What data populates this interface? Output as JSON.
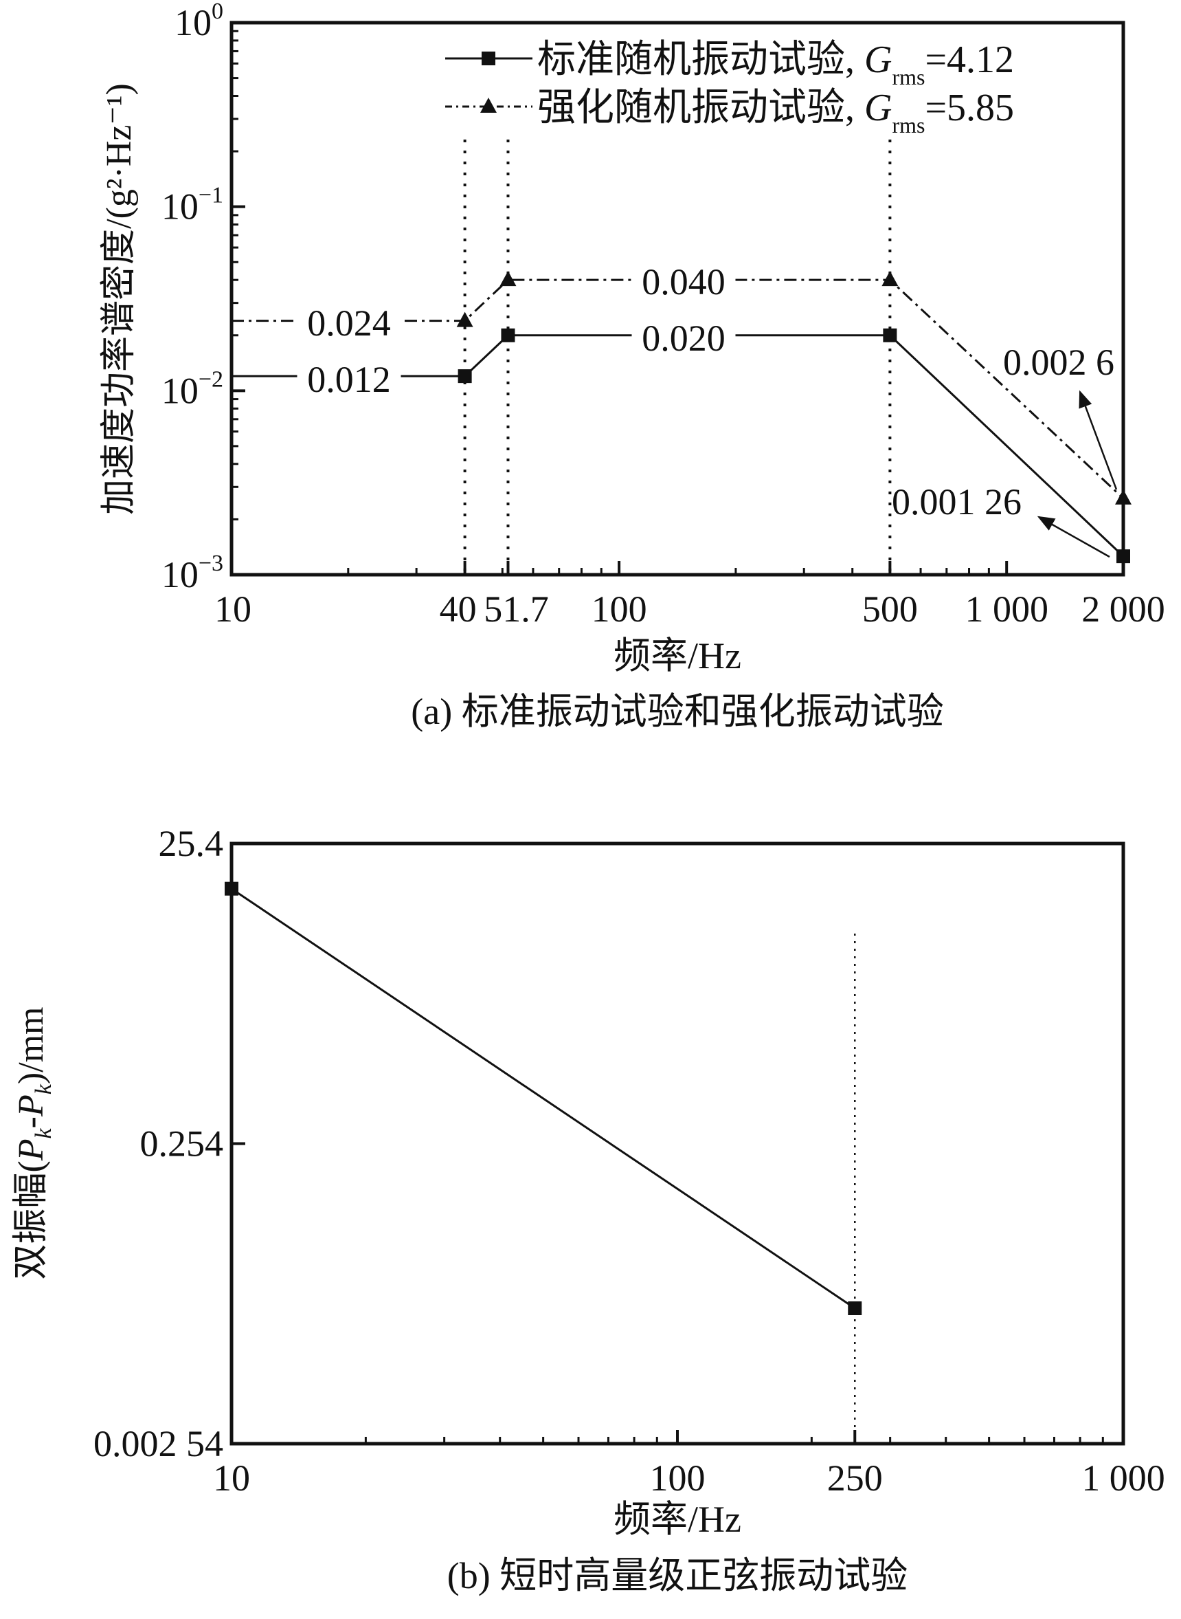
{
  "chart_data": [
    {
      "type": "line",
      "title": "",
      "caption": "(a) 标准振动试验和强化振动试验",
      "xlabel": "频率/Hz",
      "ylabel": "加速度功率谱密度/(g²·Hz⁻¹)",
      "xscale": "log",
      "yscale": "log",
      "xlim": [
        10,
        2000
      ],
      "ylim": [
        0.001,
        1
      ],
      "x_tick_values": [
        10,
        40,
        51.7,
        100,
        500,
        1000,
        2000
      ],
      "x_tick_labels": [
        "10",
        "40",
        "51.7",
        "100",
        "500",
        "1 000",
        "2 000"
      ],
      "y_ticks": [
        {
          "value": 1,
          "base": "10",
          "exp": "0"
        },
        {
          "value": 0.1,
          "base": "10",
          "exp": "−1"
        },
        {
          "value": 0.01,
          "base": "10",
          "exp": "−2"
        },
        {
          "value": 0.001,
          "base": "10",
          "exp": "−3"
        }
      ],
      "reference_lines_x": [
        40,
        51.7,
        500
      ],
      "legend_position": "top-right",
      "series": [
        {
          "name": "标准随机振动试验, ",
          "g": "G",
          "sub": "rms",
          "value_text": "=4.12",
          "style": "solid",
          "marker": "square",
          "x": [
            10,
            40,
            51.7,
            500,
            2000
          ],
          "y": [
            0.012,
            0.012,
            0.02,
            0.02,
            0.00126
          ]
        },
        {
          "name": "强化随机振动试验, ",
          "g": "G",
          "sub": "rms",
          "value_text": "=5.85",
          "style": "dash-dot",
          "marker": "triangle",
          "x": [
            10,
            40,
            51.7,
            500,
            2000
          ],
          "y": [
            0.024,
            0.024,
            0.04,
            0.04,
            0.0026
          ]
        }
      ],
      "annotations": [
        "0.024",
        "0.012",
        "0.040",
        "0.020",
        "0.002 6",
        "0.001 26"
      ]
    },
    {
      "type": "line",
      "caption": "(b) 短时高量级正弦振动试验",
      "xlabel": "频率/Hz",
      "ylabel_main": "双振幅(",
      "ylabel_p": "P",
      "ylabel_k": "k",
      "ylabel_dash": "-",
      "ylabel_end": ")/mm",
      "xscale": "log",
      "yscale": "log",
      "xlim": [
        10,
        1000
      ],
      "ylim": [
        0.00254,
        25.4
      ],
      "x_tick_values": [
        10,
        100,
        250,
        1000
      ],
      "x_tick_labels": [
        "10",
        "100",
        "250",
        "1 000"
      ],
      "y_tick_values": [
        25.4,
        0.254,
        0.00254
      ],
      "y_tick_labels": [
        "25.4",
        "0.254",
        "0.002 54"
      ],
      "reference_lines_x": [
        250
      ],
      "series": [
        {
          "name": "双振幅",
          "style": "solid",
          "marker": "square",
          "x": [
            10,
            250
          ],
          "y": [
            12.7,
            0.0203
          ]
        }
      ]
    }
  ]
}
